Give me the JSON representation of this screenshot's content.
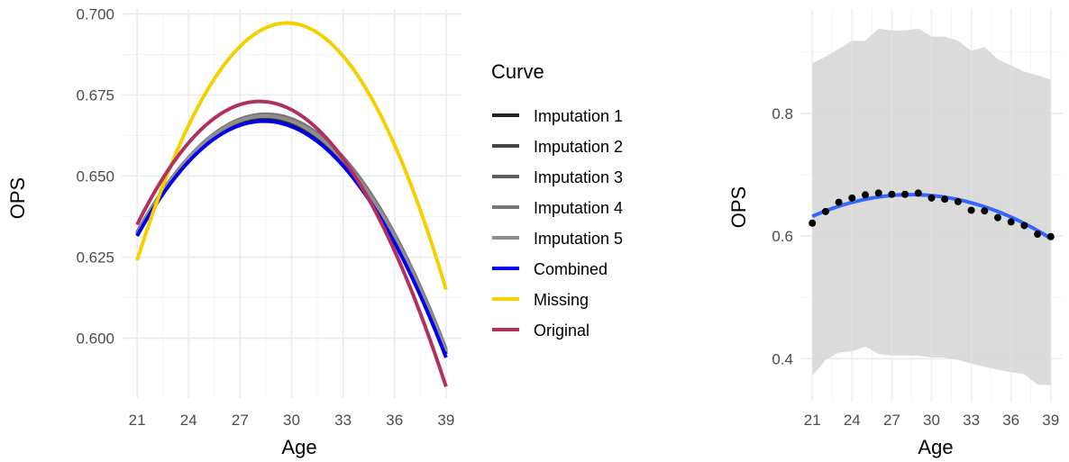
{
  "chart_data": [
    {
      "type": "line",
      "xlabel": "Age",
      "ylabel": "OPS",
      "xlim": [
        20.1,
        39.9
      ],
      "ylim": [
        0.5815,
        0.7015
      ],
      "x_ticks": [
        "21",
        "24",
        "27",
        "30",
        "33",
        "36",
        "39"
      ],
      "y_ticks": [
        "0.600",
        "0.625",
        "0.650",
        "0.675",
        "0.700"
      ],
      "grid": true,
      "legend": {
        "title": "Curve",
        "placement": "right",
        "entries": [
          "Imputation 1",
          "Imputation 2",
          "Imputation 3",
          "Imputation 4",
          "Imputation 5",
          "Combined",
          "Missing",
          "Original"
        ]
      },
      "series": [
        {
          "name": "Imputation 1",
          "color": "#222222",
          "x": [
            21,
            27.6,
            39
          ],
          "y": [
            0.6325,
            0.6675,
            0.595
          ]
        },
        {
          "name": "Imputation 2",
          "color": "#444444",
          "x": [
            21,
            27.6,
            39
          ],
          "y": [
            0.632,
            0.6678,
            0.5955
          ]
        },
        {
          "name": "Imputation 3",
          "color": "#5e5e5e",
          "x": [
            21,
            27.6,
            39
          ],
          "y": [
            0.6323,
            0.6682,
            0.596
          ]
        },
        {
          "name": "Imputation 4",
          "color": "#777777",
          "x": [
            21,
            27.6,
            39
          ],
          "y": [
            0.6318,
            0.6685,
            0.5965
          ]
        },
        {
          "name": "Imputation 5",
          "color": "#8e8e8e",
          "x": [
            21,
            27.6,
            39
          ],
          "y": [
            0.6322,
            0.668,
            0.5958
          ]
        },
        {
          "name": "Combined",
          "color": "#0000ee",
          "x": [
            21,
            27.6,
            39
          ],
          "y": [
            0.6315,
            0.6665,
            0.594
          ]
        },
        {
          "name": "Missing",
          "color": "#f5d000",
          "x": [
            21,
            29.3,
            39
          ],
          "y": [
            0.624,
            0.697,
            0.615
          ]
        },
        {
          "name": "Original",
          "color": "#b03060",
          "x": [
            21,
            28.1,
            39
          ],
          "y": [
            0.635,
            0.673,
            0.585
          ]
        }
      ]
    },
    {
      "type": "scatter",
      "xlabel": "Age",
      "ylabel": "OPS",
      "xlim": [
        20.1,
        39.9
      ],
      "ylim": [
        0.33,
        0.97
      ],
      "x_ticks": [
        "21",
        "24",
        "27",
        "30",
        "33",
        "36",
        "39"
      ],
      "y_ticks": [
        "0.4",
        "0.6",
        "0.8"
      ],
      "grid": true,
      "points": {
        "color": "#000000",
        "x": [
          21,
          22,
          23,
          24,
          25,
          26,
          27,
          28,
          29,
          30,
          31,
          32,
          33,
          34,
          35,
          36,
          37,
          38,
          39
        ],
        "y": [
          0.621,
          0.64,
          0.655,
          0.662,
          0.667,
          0.67,
          0.668,
          0.668,
          0.67,
          0.662,
          0.66,
          0.656,
          0.642,
          0.641,
          0.63,
          0.623,
          0.617,
          0.603,
          0.599
        ]
      },
      "fit": {
        "color": "#3366ff",
        "x": [
          21,
          27.6,
          39
        ],
        "y": [
          0.632,
          0.667,
          0.596
        ]
      },
      "band": {
        "color": "#d9d9d9",
        "x": [
          21,
          22,
          23,
          24,
          25,
          26,
          27,
          28,
          29,
          30,
          31,
          32,
          33,
          34,
          35,
          36,
          37,
          38,
          39
        ],
        "upper": [
          0.882,
          0.892,
          0.905,
          0.918,
          0.918,
          0.938,
          0.935,
          0.935,
          0.938,
          0.925,
          0.925,
          0.918,
          0.902,
          0.908,
          0.888,
          0.878,
          0.868,
          0.862,
          0.855
        ],
        "lower": [
          0.372,
          0.398,
          0.41,
          0.412,
          0.42,
          0.408,
          0.405,
          0.405,
          0.405,
          0.402,
          0.402,
          0.398,
          0.392,
          0.387,
          0.382,
          0.378,
          0.375,
          0.358,
          0.357
        ]
      }
    }
  ]
}
